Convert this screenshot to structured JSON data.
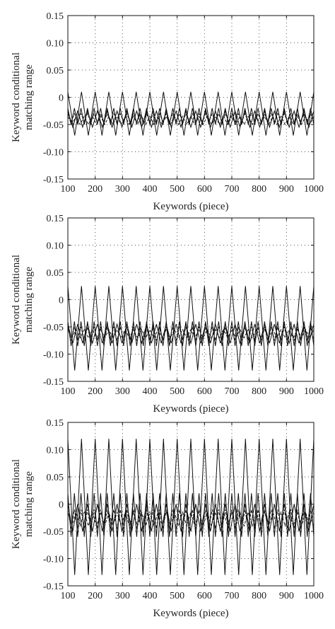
{
  "chart_data": [
    {
      "type": "line",
      "xlabel": "Keywords (piece)",
      "ylabel_lines": [
        "Keyword conditional",
        "matching range"
      ],
      "xlim": [
        100,
        1000
      ],
      "ylim": [
        -0.15,
        0.15
      ],
      "xticks": [
        "100",
        "200",
        "300",
        "400",
        "500",
        "600",
        "700",
        "800",
        "900",
        "1000"
      ],
      "yticks": [
        "0.15",
        "0.10",
        "0.05",
        "0",
        "-0.05",
        "-0.10",
        "-0.15"
      ],
      "grid": "dotted",
      "series": [
        {
          "style": "solid",
          "x_step": 25,
          "values_cycle": [
            0.01,
            -0.07
          ]
        },
        {
          "style": "solid",
          "x_step": 12,
          "values_cycle": [
            -0.02,
            -0.05
          ]
        },
        {
          "style": "dashed",
          "x_step": 12,
          "values_cycle": [
            -0.03,
            -0.045
          ]
        },
        {
          "style": "solid",
          "x_step": 18,
          "values_cycle": [
            -0.025,
            -0.055
          ]
        },
        {
          "style": "dashed",
          "x_step": 15,
          "values_cycle": [
            -0.035,
            -0.05
          ]
        }
      ]
    },
    {
      "type": "line",
      "xlabel": "Keywords (piece)",
      "ylabel_lines": [
        "Keyword conditional",
        "matching range"
      ],
      "xlim": [
        100,
        1000
      ],
      "ylim": [
        -0.15,
        0.15
      ],
      "xticks": [
        "100",
        "200",
        "300",
        "400",
        "500",
        "600",
        "700",
        "800",
        "900",
        "1000"
      ],
      "yticks": [
        "0.15",
        "0.10",
        "0.05",
        "0",
        "-0.05",
        "-0.10",
        "-0.15"
      ],
      "grid": "dotted",
      "series": [
        {
          "style": "solid",
          "x_step": 25,
          "values_cycle": [
            0.025,
            -0.13
          ]
        },
        {
          "style": "solid",
          "x_step": 12,
          "values_cycle": [
            -0.04,
            -0.085
          ]
        },
        {
          "style": "dashed",
          "x_step": 12,
          "values_cycle": [
            -0.05,
            -0.075
          ]
        },
        {
          "style": "solid",
          "x_step": 18,
          "values_cycle": [
            -0.045,
            -0.08
          ]
        },
        {
          "style": "dashed",
          "x_step": 15,
          "values_cycle": [
            -0.055,
            -0.07
          ]
        }
      ]
    },
    {
      "type": "line",
      "xlabel": "Keywords (piece)",
      "ylabel_lines": [
        "Keyword conditional",
        "matching range"
      ],
      "xlim": [
        100,
        1000
      ],
      "ylim": [
        -0.15,
        0.15
      ],
      "xticks": [
        "100",
        "200",
        "300",
        "400",
        "500",
        "600",
        "700",
        "800",
        "900",
        "1000"
      ],
      "yticks": [
        "0.15",
        "0.10",
        "0.05",
        "0",
        "-0.05",
        "-0.10",
        "-0.15"
      ],
      "grid": "dotted",
      "series": [
        {
          "style": "solid",
          "x_step": 25,
          "values_cycle": [
            0.12,
            -0.13
          ]
        },
        {
          "style": "solid",
          "x_step": 12,
          "values_cycle": [
            0.02,
            -0.06
          ]
        },
        {
          "style": "dashed",
          "x_step": 12,
          "values_cycle": [
            -0.01,
            -0.045
          ]
        },
        {
          "style": "solid",
          "x_step": 18,
          "values_cycle": [
            0.0,
            -0.05
          ]
        },
        {
          "style": "dashed",
          "x_step": 15,
          "values_cycle": [
            -0.015,
            -0.04
          ]
        }
      ]
    }
  ]
}
